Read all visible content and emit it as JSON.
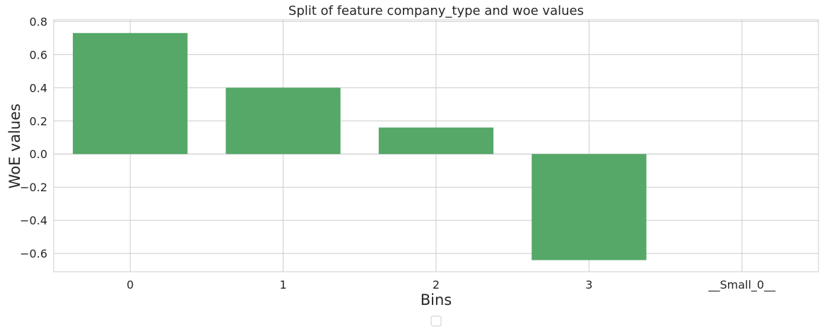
{
  "chart_data": {
    "type": "bar",
    "title": "Split of feature company_type and woe values",
    "xlabel": "Bins",
    "ylabel": "WoE values",
    "categories": [
      "0",
      "1",
      "2",
      "3",
      "__Small_0__"
    ],
    "values": [
      0.73,
      0.4,
      0.16,
      -0.64,
      0.0
    ],
    "ylim": [
      -0.71,
      0.81
    ],
    "yticks": [
      0.8,
      0.6,
      0.4,
      0.2,
      0.0,
      -0.2,
      -0.4,
      -0.6
    ],
    "ytick_labels": [
      "0.8",
      "0.6",
      "0.4",
      "0.2",
      "0.0",
      "−0.2",
      "−0.4",
      "−0.6"
    ],
    "grid": true,
    "legend": "bottom-center, empty",
    "colors": {
      "bar": "#55a868",
      "grid": "#cccccc",
      "background": "#ffffff"
    }
  }
}
